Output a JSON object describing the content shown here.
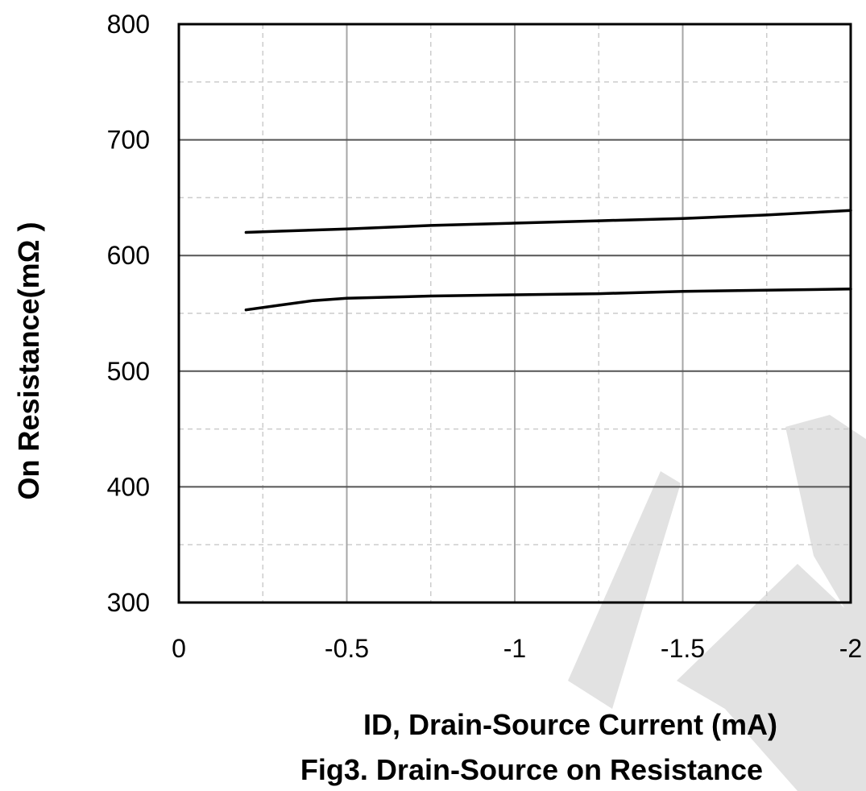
{
  "chart_data": {
    "type": "line",
    "title": "Fig3. Drain-Source on Resistance",
    "xlabel": "ID, Drain-Source Current (mA)",
    "ylabel": "On Resistance(mΩ )",
    "xlim": [
      0,
      -2
    ],
    "ylim": [
      300,
      800
    ],
    "xticks": [
      0,
      -0.5,
      -1,
      -1.5,
      -2
    ],
    "xtick_labels": [
      "0",
      "-0.5",
      "-1",
      "-1.5",
      "-2"
    ],
    "yticks": [
      300,
      400,
      500,
      600,
      700,
      800
    ],
    "ytick_labels": [
      "300",
      "400",
      "500",
      "600",
      "700",
      "800"
    ],
    "x_minor_step": 0.25,
    "y_minor_step": 50,
    "grid": true,
    "legend": "none",
    "series": [
      {
        "x": [
          -0.2,
          -0.3,
          -0.4,
          -0.5,
          -0.75,
          -1,
          -1.25,
          -1.5,
          -1.75,
          -2
        ],
        "y": [
          620,
          621,
          622,
          623,
          626,
          628,
          630,
          632,
          635,
          639
        ]
      },
      {
        "x": [
          -0.2,
          -0.3,
          -0.4,
          -0.5,
          -0.75,
          -1,
          -1.25,
          -1.5,
          -1.75,
          -2
        ],
        "y": [
          553,
          557,
          561,
          563,
          565,
          566,
          567,
          569,
          570,
          571
        ]
      }
    ],
    "colors": {
      "line": "#000000",
      "major_grid": "#a6a6a6",
      "minor_grid": "#cccccc",
      "watermark": "#e0e0e0"
    }
  }
}
